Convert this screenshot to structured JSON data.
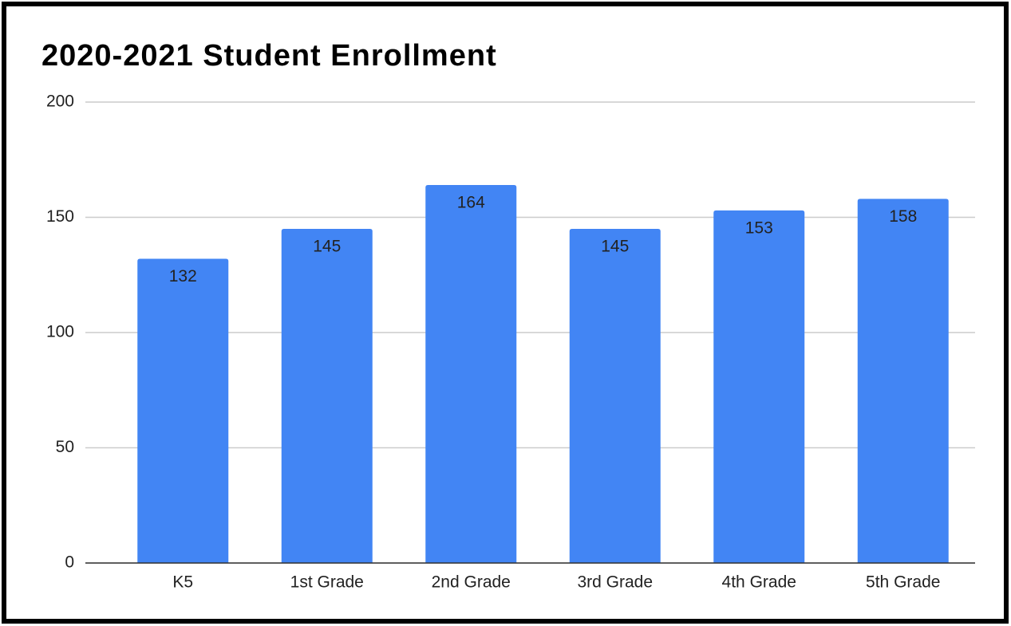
{
  "chart_data": {
    "type": "bar",
    "title": "2020-2021 Student Enrollment",
    "categories": [
      "K5",
      "1st Grade",
      "2nd Grade",
      "3rd Grade",
      "4th Grade",
      "5th Grade"
    ],
    "values": [
      132,
      145,
      164,
      145,
      153,
      158
    ],
    "color": "#4285f4",
    "ylim": [
      0,
      200
    ],
    "yticks": [
      0,
      50,
      100,
      150,
      200
    ],
    "grid": true
  }
}
